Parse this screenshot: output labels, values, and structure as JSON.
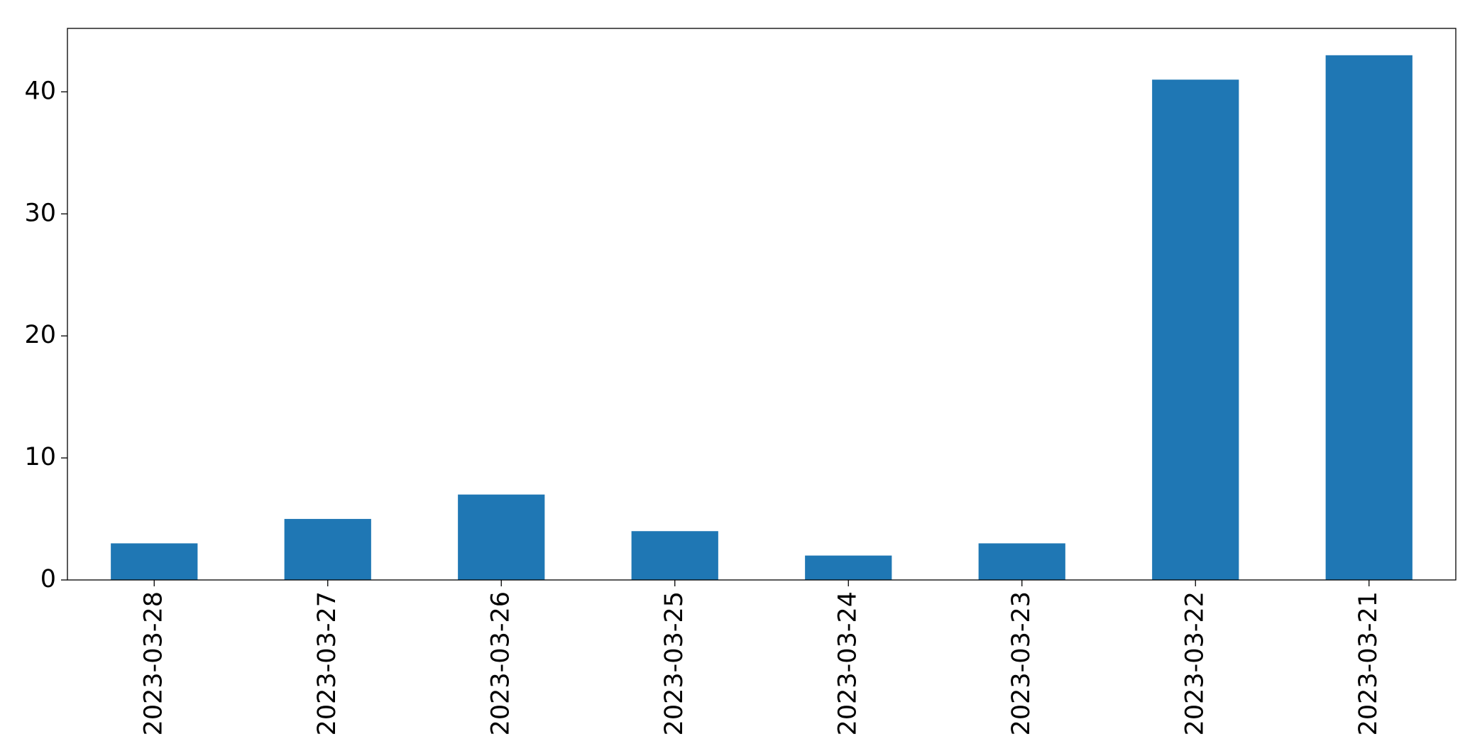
{
  "chart_data": {
    "type": "bar",
    "categories": [
      "2023-03-28",
      "2023-03-27",
      "2023-03-26",
      "2023-03-25",
      "2023-03-24",
      "2023-03-23",
      "2023-03-22",
      "2023-03-21"
    ],
    "values": [
      3,
      5,
      7,
      4,
      2,
      3,
      41,
      43
    ],
    "color": "#1f77b4",
    "ylim": [
      0,
      45.2
    ],
    "yticks": [
      0,
      10,
      20,
      30,
      40
    ],
    "grid": false
  }
}
